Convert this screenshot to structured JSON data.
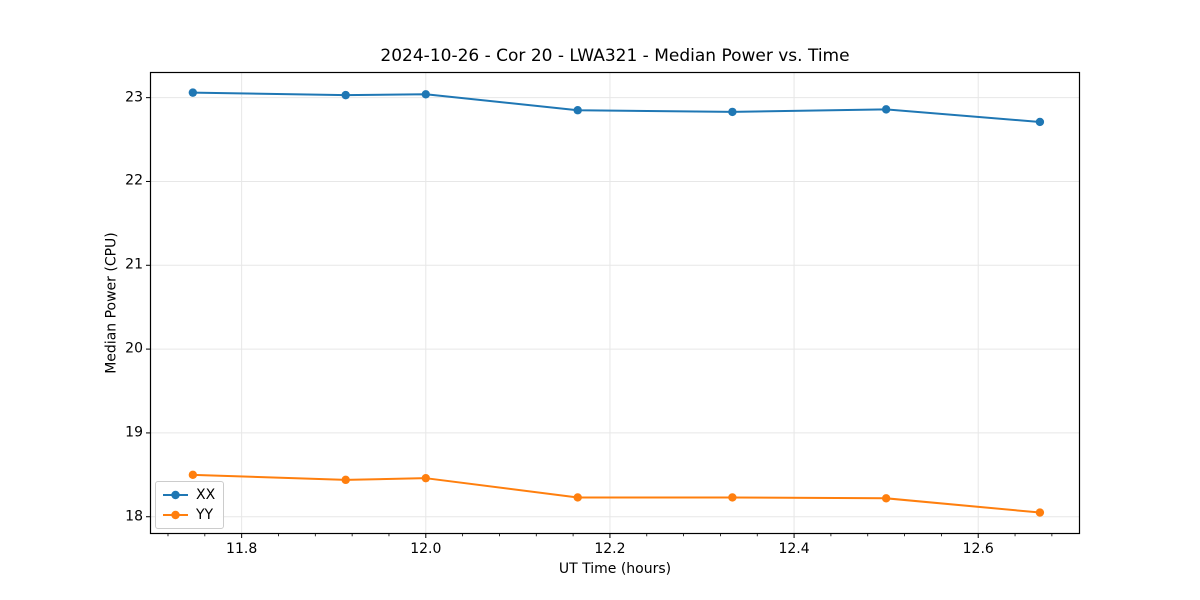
{
  "window": {
    "background_color": "#ffffff"
  },
  "chart_data": {
    "type": "line",
    "title": "2024-10-26 - Cor 20 - LWA321 - Median Power vs. Time",
    "xlabel": "UT Time (hours)",
    "ylabel": "Median Power (CPU)",
    "xlim": [
      11.701,
      12.71
    ],
    "ylim": [
      17.8,
      23.3
    ],
    "xticks": [
      11.8,
      12.0,
      12.2,
      12.4,
      12.6
    ],
    "xtick_labels": [
      "11.8",
      "12.0",
      "12.2",
      "12.4",
      "12.6"
    ],
    "yticks": [
      18,
      19,
      20,
      21,
      22,
      23
    ],
    "ytick_labels": [
      "18",
      "19",
      "20",
      "21",
      "22",
      "23"
    ],
    "minor_xtick_step": 0.04,
    "grid": "major-both",
    "grid_color": "#e7e7e7",
    "spine_color": "#000000",
    "legend_position": "lower-left",
    "x": [
      11.747,
      11.913,
      12.0,
      12.165,
      12.333,
      12.5,
      12.667
    ],
    "series": [
      {
        "name": "XX",
        "color": "#1f77b4",
        "marker": "circle",
        "values": [
          23.06,
          23.03,
          23.04,
          22.85,
          22.83,
          22.86,
          22.71
        ]
      },
      {
        "name": "YY",
        "color": "#ff7f0e",
        "marker": "circle",
        "values": [
          18.5,
          18.44,
          18.46,
          18.23,
          18.23,
          18.22,
          18.05
        ]
      }
    ]
  }
}
